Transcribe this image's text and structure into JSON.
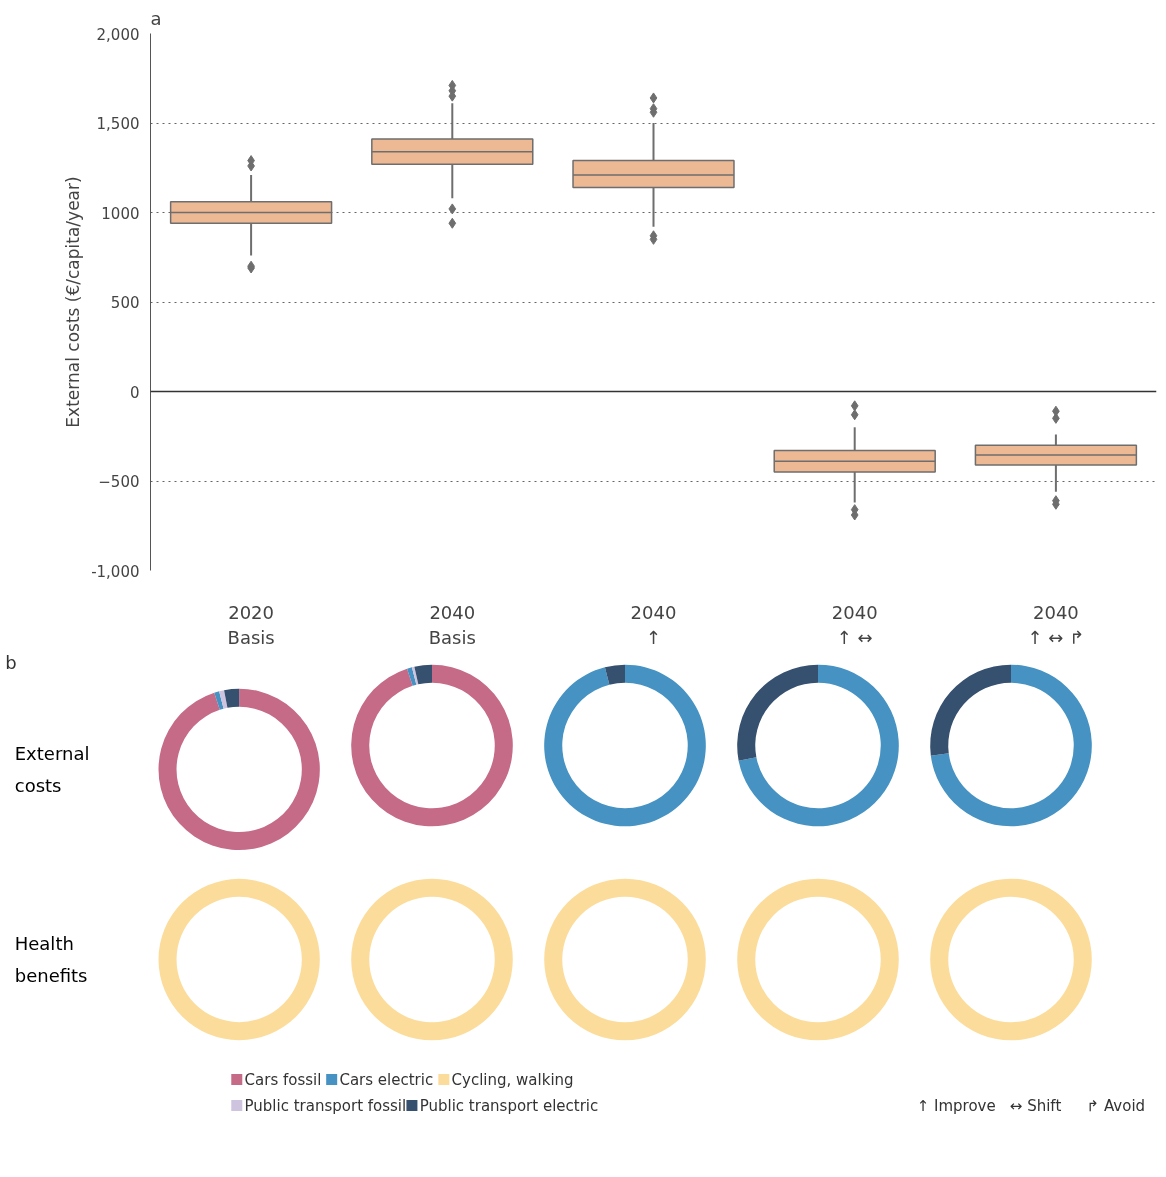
{
  "chart_data": [
    {
      "type": "box",
      "title": "a",
      "ylabel": "External costs (€/capita/year)",
      "categories": [
        "2020\nBasis",
        "2040\nBasis",
        "2040\n↑",
        "2040\n↑ ↔",
        "2040\n↑ ↔ ↱"
      ],
      "color": "#ecb994",
      "boxes": [
        {
          "low": 760,
          "q1": 940,
          "median": 1000,
          "q3": 1060,
          "high": 1210,
          "outliers": [
            690,
            700,
            1260,
            1290
          ]
        },
        {
          "low": 1080,
          "q1": 1270,
          "median": 1340,
          "q3": 1410,
          "high": 1610,
          "outliers": [
            940,
            1020,
            1650,
            1680,
            1710
          ]
        },
        {
          "low": 920,
          "q1": 1140,
          "median": 1210,
          "q3": 1290,
          "high": 1500,
          "outliers": [
            850,
            870,
            1560,
            1580,
            1640
          ]
        },
        {
          "low": -620,
          "q1": -450,
          "median": -390,
          "q3": -330,
          "high": -200,
          "outliers": [
            -690,
            -660,
            -130,
            -80
          ]
        },
        {
          "low": -560,
          "q1": -410,
          "median": -355,
          "q3": -300,
          "high": -240,
          "outliers": [
            -630,
            -610,
            -150,
            -110
          ]
        }
      ],
      "ylim": [
        -1000,
        2000
      ],
      "yticks": [
        {
          "value": -1000,
          "label": "-1,000"
        },
        -500,
        0,
        500,
        1000,
        {
          "value": 1500,
          "label": "1,500"
        },
        {
          "value": 2000,
          "label": "2,000"
        }
      ],
      "grid": "y",
      "ref_lines": [
        {
          "axis": "y",
          "value": 0,
          "color": "#333333",
          "line_style": "solid"
        }
      ],
      "annotations": [
        "↑ Improve",
        "↔ Shift",
        "↱ Avoid"
      ]
    },
    {
      "type": "donut",
      "title": "b",
      "ylabel": "External\ncosts",
      "legend": "bottom",
      "categories": [
        "Cars fossil",
        "Cars electric",
        "Cycling, walking",
        "Public transport fossil",
        "Public transport electric"
      ],
      "values": [
        95,
        1,
        0,
        1,
        3
      ],
      "colors": [
        "#c56a87",
        "#4592c3",
        "#fcdc9b",
        "#cec4df",
        "#36506f"
      ]
    },
    {
      "type": "donut",
      "categories": [
        null,
        null,
        null,
        null,
        null
      ],
      "values": [
        95,
        1,
        0,
        0.5,
        3.5
      ],
      "colors": [
        "#c56a87",
        "#4592c3",
        "#fcdc9b",
        "#cec4df",
        "#36506f"
      ]
    },
    {
      "type": "donut",
      "categories": [
        null,
        null,
        null,
        null,
        null
      ],
      "values": [
        0,
        96,
        0,
        0,
        4
      ],
      "colors": [
        "#c56a87",
        "#4592c3",
        "#fcdc9b",
        "#cec4df",
        "#36506f"
      ]
    },
    {
      "type": "donut",
      "categories": [
        null,
        null,
        null,
        null,
        null
      ],
      "values": [
        0,
        72,
        0,
        0,
        28
      ],
      "colors": [
        "#c56a87",
        "#4592c3",
        "#fcdc9b",
        "#cec4df",
        "#36506f"
      ]
    },
    {
      "type": "donut",
      "categories": [
        null,
        null,
        null,
        null,
        null
      ],
      "values": [
        0,
        73,
        0,
        0,
        27
      ],
      "colors": [
        "#c56a87",
        "#4592c3",
        "#fcdc9b",
        "#cec4df",
        "#36506f"
      ]
    },
    {
      "type": "pie",
      "ylabel": "Health\nbenefits",
      "categories": [
        null,
        null,
        null,
        null,
        null
      ],
      "values": [
        0,
        0,
        100,
        0,
        0
      ],
      "colors": [
        "#c56a87",
        "#4592c3",
        "#fcdc9b",
        "#cec4df",
        "#36506f"
      ]
    },
    {
      "type": "pie",
      "categories": [
        null,
        null,
        null,
        null,
        null
      ],
      "values": [
        0,
        0,
        100,
        0,
        0
      ],
      "colors": [
        "#c56a87",
        "#4592c3",
        "#fcdc9b",
        "#cec4df",
        "#36506f"
      ]
    },
    {
      "type": "pie",
      "categories": [
        null,
        null,
        null,
        null,
        null
      ],
      "values": [
        0,
        0,
        100,
        0,
        0
      ],
      "colors": [
        "#c56a87",
        "#4592c3",
        "#fcdc9b",
        "#cec4df",
        "#36506f"
      ]
    },
    {
      "type": "pie",
      "categories": [
        null,
        null,
        null,
        null,
        null
      ],
      "values": [
        0,
        0,
        100,
        0,
        0
      ],
      "colors": [
        "#c56a87",
        "#4592c3",
        "#fcdc9b",
        "#cec4df",
        "#36506f"
      ]
    },
    {
      "type": "pie",
      "categories": [
        null,
        null,
        null,
        null,
        null
      ],
      "values": [
        0,
        0,
        100,
        0,
        0
      ],
      "colors": [
        "#c56a87",
        "#4592c3",
        "#fcdc9b",
        "#cec4df",
        "#36506f"
      ]
    }
  ]
}
